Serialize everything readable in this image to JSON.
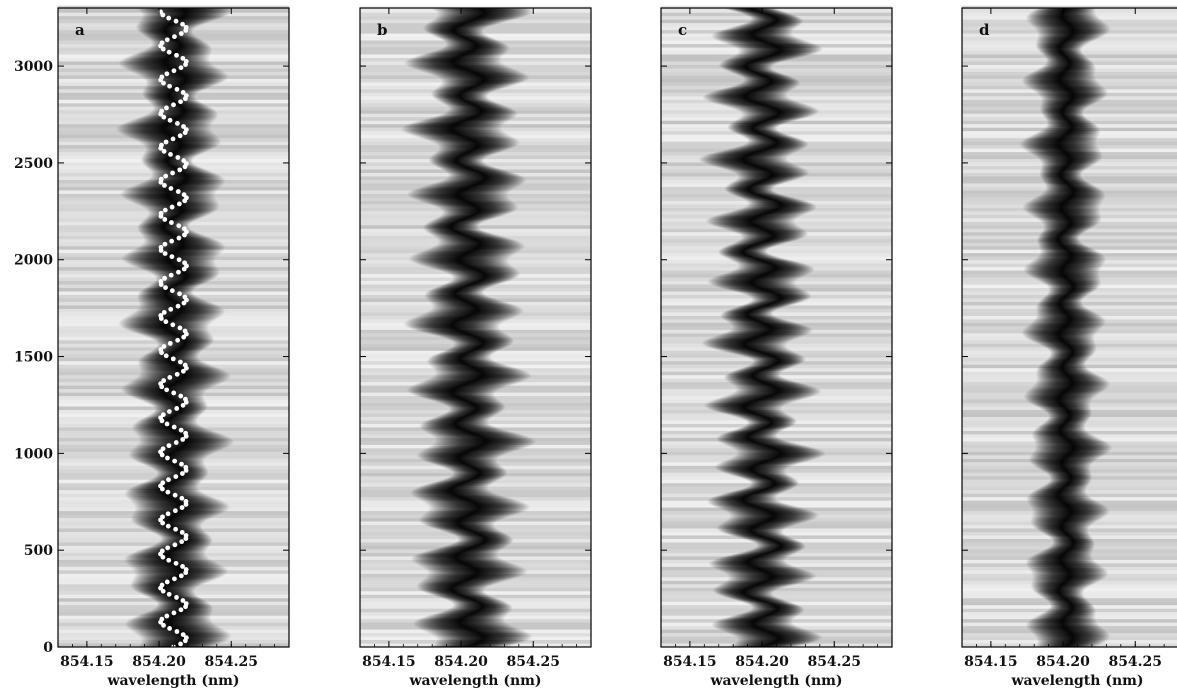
{
  "chart_data": [
    {
      "type": "heatmap",
      "panel_label": "a",
      "xlabel": "wavelength (nm)",
      "xlim": [
        854.13,
        854.29
      ],
      "xticks": [
        854.15,
        854.2,
        854.25
      ],
      "xtick_labels": [
        "854.15",
        "854.20",
        "854.25"
      ],
      "ylim": [
        0,
        3300
      ],
      "yticks": [
        0,
        500,
        1000,
        1500,
        2000,
        2500,
        3000
      ],
      "ytick_labels": [
        "0",
        "500",
        "1000",
        "1500",
        "2000",
        "2500",
        "3000"
      ],
      "colormap": "grayscale, dark = deep absorption",
      "line_core": {
        "center_nm": 854.211,
        "width_nm": 0.016,
        "amplitude_nm": 0.006,
        "period": 170
      },
      "overlay": {
        "style": "white dots",
        "x_center_nm": 854.21,
        "amplitude_nm": 0.009,
        "period": 175,
        "y_start": 0,
        "y_end": 3290,
        "y_step": 16
      }
    },
    {
      "type": "heatmap",
      "panel_label": "b",
      "xlabel": "wavelength (nm)",
      "xlim": [
        854.13,
        854.29
      ],
      "xticks": [
        854.15,
        854.2,
        854.25
      ],
      "xtick_labels": [
        "854.15",
        "854.20",
        "854.25"
      ],
      "ylim": [
        0,
        3300
      ],
      "colormap": "grayscale, dark = deep absorption",
      "line_core": {
        "center_nm": 854.205,
        "width_nm": 0.017,
        "amplitude_nm": 0.009,
        "period": 170
      }
    },
    {
      "type": "heatmap",
      "panel_label": "c",
      "xlabel": "wavelength (nm)",
      "xlim": [
        854.13,
        854.29
      ],
      "xticks": [
        854.15,
        854.2,
        854.25
      ],
      "xtick_labels": [
        "854.15",
        "854.20",
        "854.25"
      ],
      "ylim": [
        0,
        3300
      ],
      "colormap": "grayscale, dark = deep absorption",
      "line_core": {
        "center_nm": 854.2,
        "width_nm": 0.015,
        "amplitude_nm": 0.01,
        "period": 160
      }
    },
    {
      "type": "heatmap",
      "panel_label": "d",
      "xlabel": "wavelength (nm)",
      "xlim": [
        854.13,
        854.29
      ],
      "xticks": [
        854.15,
        854.2,
        854.25
      ],
      "xtick_labels": [
        "854.15",
        "854.20",
        "854.25"
      ],
      "ylim": [
        0,
        3300
      ],
      "colormap": "grayscale, dark = deep absorption",
      "line_core": {
        "center_nm": 854.202,
        "width_nm": 0.013,
        "amplitude_nm": 0.004,
        "period": 165
      }
    }
  ]
}
